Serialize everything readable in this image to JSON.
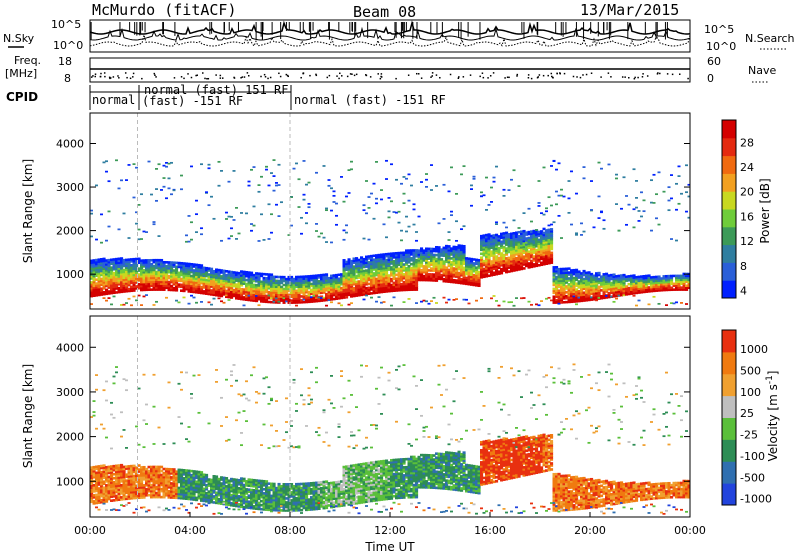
{
  "header": {
    "station": "McMurdo (fitACF)",
    "beam": "Beam 08",
    "date": "13/Mar/2015"
  },
  "top_panels": {
    "nsky_label": "N.Sky",
    "nsearch_label": "N.Search",
    "noise_tick_hi": "10^5",
    "noise_tick_lo": "10^0",
    "freq_label": "Freq.",
    "freq_unit": "[MHz]",
    "freq_ticks": [
      "18",
      "8"
    ],
    "nave_label": "Nave",
    "nave_ticks": [
      "60",
      "0"
    ],
    "cpid_label": "CPID",
    "cpid_segments": [
      {
        "label": "normal",
        "start_hour": 0,
        "end_hour": 1.9
      },
      {
        "label": "normal (fast) 151 RF",
        "start_hour": 1.9,
        "end_hour": 8.0
      },
      {
        "label": "(fast) -151 RF",
        "start_hour": 1.9,
        "end_hour": 8.0
      },
      {
        "label": "normal (fast) -151 RF",
        "start_hour": 8.0,
        "end_hour": 24.0
      }
    ]
  },
  "x_axis": {
    "label": "Time UT",
    "ticks": [
      "00:00",
      "04:00",
      "08:00",
      "12:00",
      "16:00",
      "20:00",
      "00:00"
    ]
  },
  "chart_data": [
    {
      "type": "heatmap",
      "panel": "power",
      "ylabel": "Slant Range [km]",
      "yticks": [
        1000,
        2000,
        3000,
        4000
      ],
      "ylim": [
        200,
        4700
      ],
      "xlim_hours": [
        0,
        24
      ],
      "colorbar_label": "Power [dB]",
      "colorbar_ticks": [
        "28",
        "24",
        "20",
        "16",
        "12",
        "8",
        "4"
      ],
      "colors": [
        "#0020ff",
        "#2a5fd8",
        "#2f7ea0",
        "#3c9a58",
        "#6fcc3a",
        "#c8d820",
        "#f2a020",
        "#f06a10",
        "#e42a10",
        "#d40000"
      ],
      "main_band_range_km": [
        500,
        1500
      ],
      "sparse_echo_range_km": [
        1800,
        3500
      ]
    },
    {
      "type": "heatmap",
      "panel": "velocity",
      "ylabel": "Slant Range [km]",
      "yticks": [
        1000,
        2000,
        3000,
        4000
      ],
      "ylim": [
        200,
        4700
      ],
      "xlim_hours": [
        0,
        24
      ],
      "colorbar_label": "Velocity [m s^-1]",
      "colorbar_ticks": [
        "1000",
        "500",
        "100",
        "25",
        "-25",
        "-100",
        "-500",
        "-1000"
      ],
      "colors": [
        "#2244dd",
        "#2f6fb0",
        "#2d8d55",
        "#5abf3a",
        "#bfbfbf",
        "#f0a030",
        "#f07a10",
        "#e83010"
      ],
      "main_band_range_km": [
        500,
        1500
      ]
    }
  ]
}
